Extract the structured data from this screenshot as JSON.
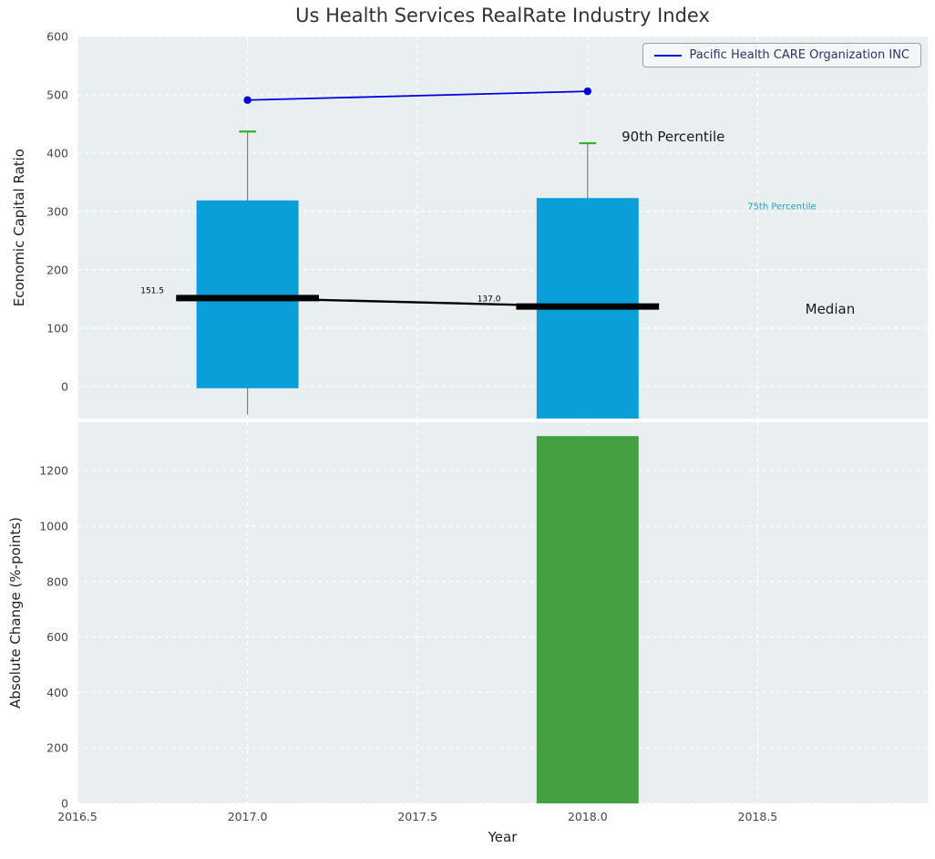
{
  "chart_data": {
    "type": "box",
    "title": "Us Health Services RealRate Industry Index",
    "xlabel": "Year",
    "xlim": [
      2016.5,
      2019.0
    ],
    "xticks": [
      2016.5,
      2017.0,
      2017.5,
      2018.0,
      2018.5
    ],
    "xtick_labels": [
      "2016.5",
      "2017.0",
      "2017.5",
      "2018.0",
      "2018.5"
    ],
    "legend_position": "upper right",
    "top_panel": {
      "ylabel": "Economic Capital Ratio",
      "ylim": [
        -55,
        600
      ],
      "yticks": [
        0,
        100,
        200,
        300,
        400,
        500,
        600
      ],
      "box_width": 0.3,
      "median_width": 0.42,
      "cap_width": 0.05,
      "boxes": [
        {
          "x": 2017.0,
          "q1": -3,
          "q3": 319,
          "median": 151.5,
          "p90": 437,
          "whisker_low": -48
        },
        {
          "x": 2018.0,
          "q1": -55,
          "q3": 323,
          "median": 137.0,
          "p90": 417,
          "whisker_low": -55
        }
      ],
      "series": [
        {
          "name": "Pacific Health CARE Organization INC",
          "x": [
            2017.0,
            2018.0
          ],
          "y": [
            491,
            506
          ]
        }
      ],
      "annotations": [
        {
          "text": "151.5",
          "x": 2016.72,
          "y": 160,
          "size": 9,
          "color": "#000000",
          "anchor": "middle"
        },
        {
          "text": "137.0",
          "x": 2017.71,
          "y": 146,
          "size": 9,
          "color": "#000000",
          "anchor": "middle"
        },
        {
          "text": "90th Percentile",
          "x": 2018.1,
          "y": 420,
          "size": 15,
          "color": "#16181c",
          "anchor": "start"
        },
        {
          "text": "75th Percentile",
          "x": 2018.47,
          "y": 304,
          "size": 10,
          "color": "#16a3cc",
          "anchor": "start"
        },
        {
          "text": "Median",
          "x": 2018.64,
          "y": 125,
          "size": 15,
          "color": "#16181c",
          "anchor": "start"
        }
      ]
    },
    "bottom_panel": {
      "ylabel": "Absolute Change (%-points)",
      "ylim": [
        0,
        1375
      ],
      "yticks": [
        0,
        200,
        400,
        600,
        800,
        1000,
        1200
      ],
      "bar_width": 0.3,
      "bars": [
        {
          "x": 2018.0,
          "value": 1325
        }
      ]
    },
    "colors": {
      "box_fill": "#0a9fd9",
      "bar_fill": "#43a143",
      "cap_stroke": "#2ab52a",
      "median_stroke": "#000000",
      "whisker_stroke": "#7f7f7f",
      "series_line": "#0000dd",
      "plot_bg": "#e9eef0",
      "grid": "#ffffff",
      "tick_text": "#3d4752",
      "label_text": "#1d2126",
      "title_text": "#2e3236",
      "legend_text": "#2e3566",
      "legend_border": "#9aa0a5",
      "legend_bg": "#f4f7f8"
    }
  }
}
